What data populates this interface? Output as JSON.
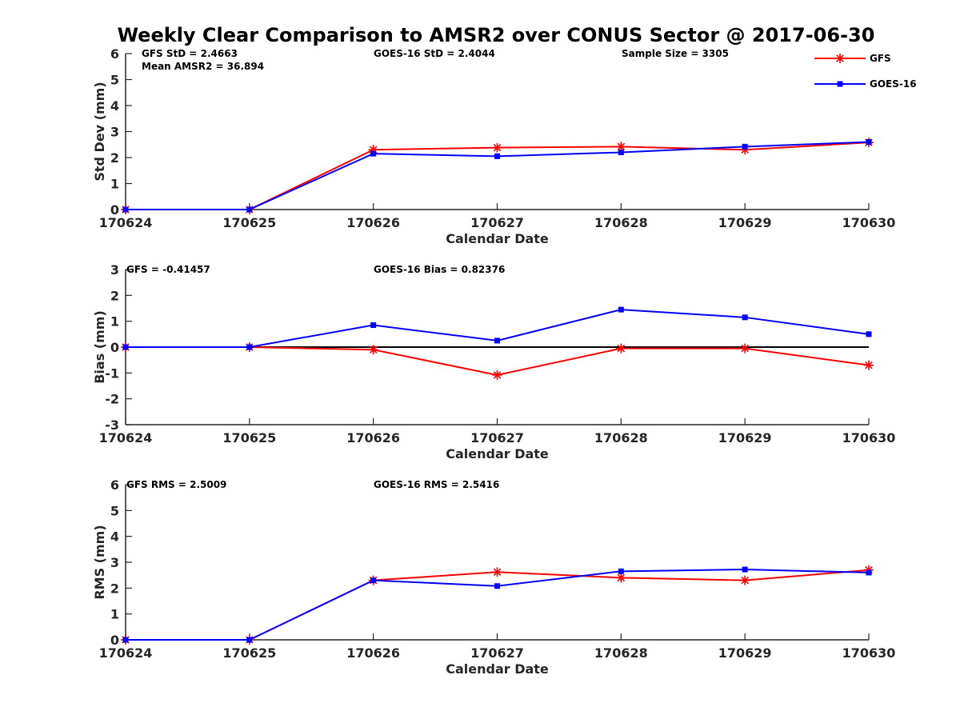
{
  "figure": {
    "title": "Weekly Clear Comparison to AMSR2 over CONUS Sector @ 2017-06-30"
  },
  "legend": {
    "placement": "top-right",
    "entries": [
      {
        "label": "GFS",
        "color": "#ff0000",
        "marker": "asterisk"
      },
      {
        "label": "GOES-16",
        "color": "#0000ff",
        "marker": "square"
      }
    ]
  },
  "chart_data": [
    {
      "type": "line",
      "xlabel": "Calendar Date",
      "ylabel": "Std Dev (mm)",
      "categories": [
        "170624",
        "170625",
        "170626",
        "170627",
        "170628",
        "170629",
        "170630"
      ],
      "ylim": [
        0,
        6
      ],
      "yticks": [
        "0",
        "1",
        "2",
        "3",
        "4",
        "5",
        "6"
      ],
      "zero_line": false,
      "series": [
        {
          "name": "GFS",
          "color": "#ff0000",
          "values": [
            0.0,
            0.0,
            2.3,
            2.38,
            2.42,
            2.3,
            2.58
          ]
        },
        {
          "name": "GOES-16",
          "color": "#0000ff",
          "values": [
            0.0,
            0.0,
            2.15,
            2.05,
            2.2,
            2.42,
            2.6
          ]
        }
      ],
      "annotations": [
        "GFS StD = 2.4663",
        "Mean AMSR2 = 36.894",
        "GOES-16 StD = 2.4044",
        "Sample Size = 3305"
      ]
    },
    {
      "type": "line",
      "xlabel": "Calendar Date",
      "ylabel": "Bias (mm)",
      "categories": [
        "170624",
        "170625",
        "170626",
        "170627",
        "170628",
        "170629",
        "170630"
      ],
      "ylim": [
        -3,
        3
      ],
      "yticks": [
        "-3",
        "-2",
        "-1",
        "0",
        "1",
        "2",
        "3"
      ],
      "zero_line": true,
      "series": [
        {
          "name": "GFS",
          "color": "#ff0000",
          "values": [
            0.0,
            0.0,
            -0.1,
            -1.08,
            -0.05,
            -0.05,
            -0.7
          ]
        },
        {
          "name": "GOES-16",
          "color": "#0000ff",
          "values": [
            0.0,
            0.0,
            0.85,
            0.25,
            1.45,
            1.15,
            0.5
          ]
        }
      ],
      "annotations": [
        "GFS = -0.41457",
        "GOES-16 Bias  = 0.82376"
      ]
    },
    {
      "type": "line",
      "xlabel": "Calendar Date",
      "ylabel": "RMS (mm)",
      "categories": [
        "170624",
        "170625",
        "170626",
        "170627",
        "170628",
        "170629",
        "170630"
      ],
      "ylim": [
        0,
        6
      ],
      "yticks": [
        "0",
        "1",
        "2",
        "3",
        "4",
        "5",
        "6"
      ],
      "zero_line": false,
      "series": [
        {
          "name": "GFS",
          "color": "#ff0000",
          "values": [
            0.0,
            0.0,
            2.3,
            2.62,
            2.4,
            2.3,
            2.7
          ]
        },
        {
          "name": "GOES-16",
          "color": "#0000ff",
          "values": [
            0.0,
            0.0,
            2.3,
            2.08,
            2.65,
            2.72,
            2.6
          ]
        }
      ],
      "annotations": [
        "GFS RMS = 2.5009",
        "GOES-16 RMS = 2.5416"
      ]
    }
  ]
}
